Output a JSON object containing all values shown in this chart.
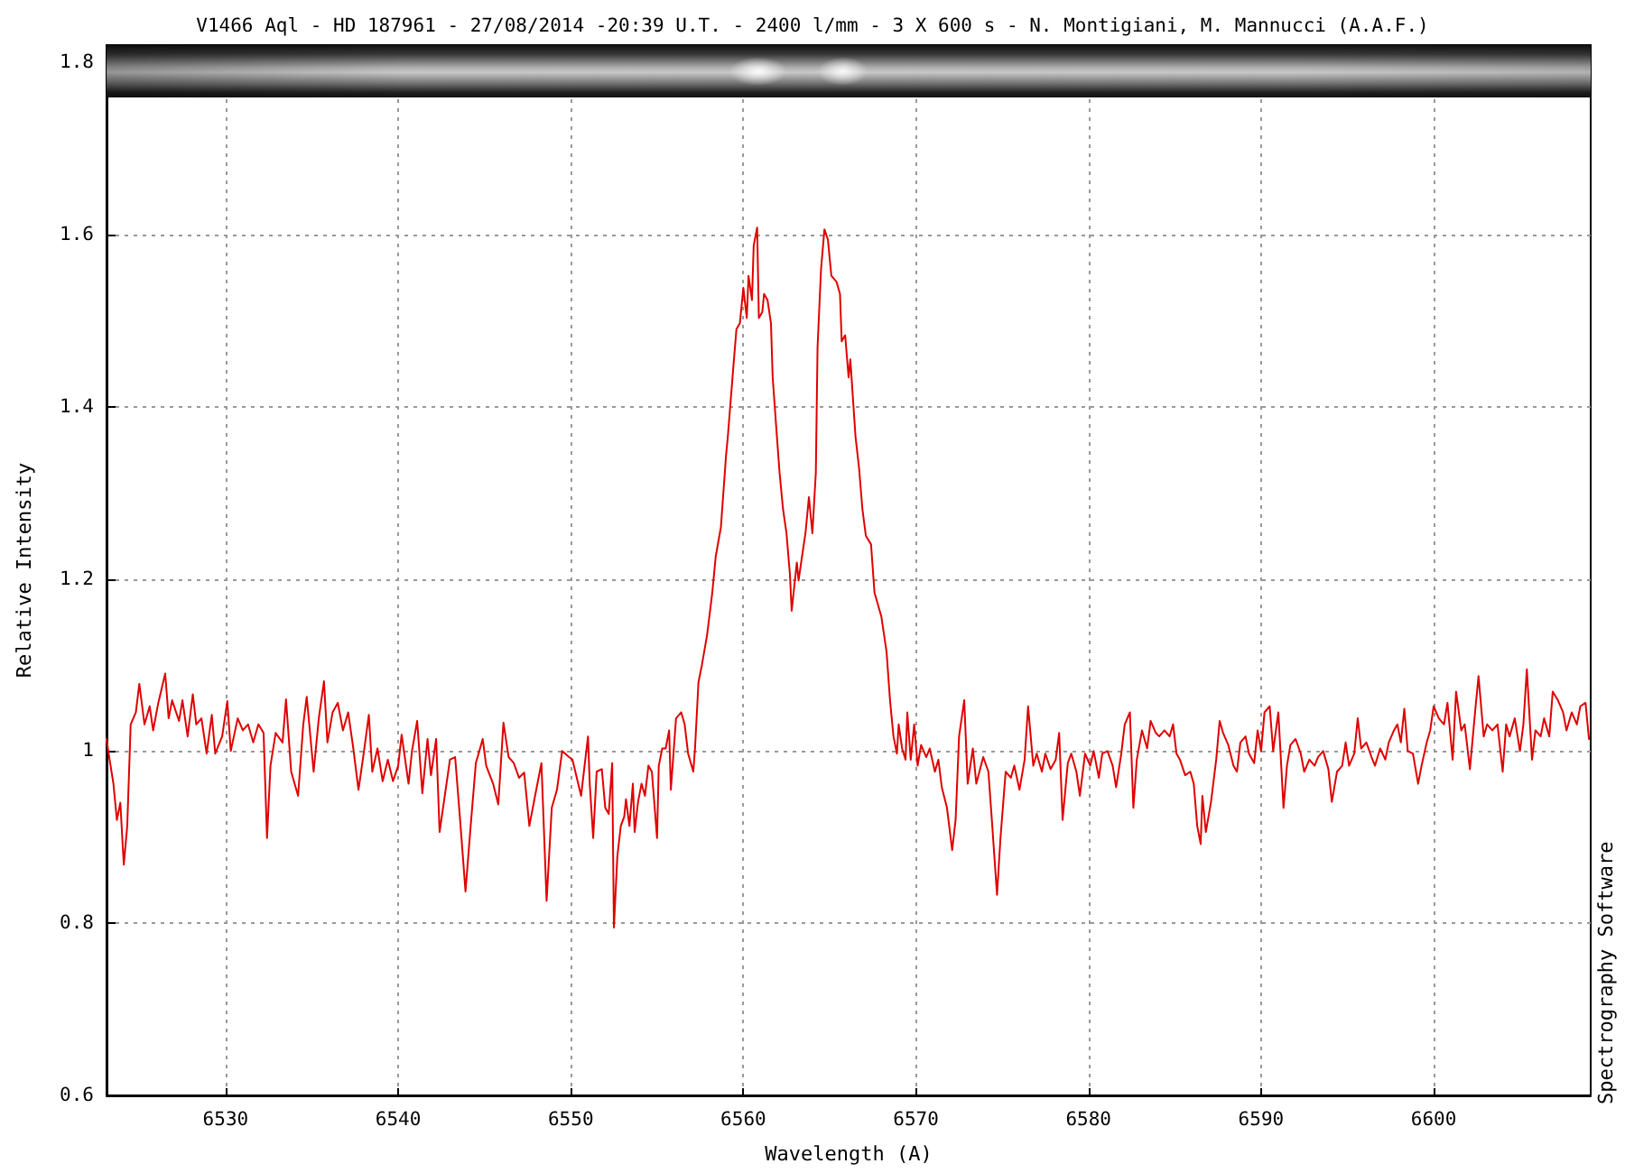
{
  "chart_data": {
    "type": "line",
    "title": "V1466 Aql - HD 187961 - 27/08/2014 -20:39 U.T. - 2400 l/mm - 3 X 600 s - N. Montigiani, M. Mannucci (A.A.F.)",
    "xlabel": "Wavelength (A)",
    "ylabel": "Relative Intensity",
    "annotations": [
      "Spectrography Software"
    ],
    "x": [
      6523.1,
      6523.2,
      6523.5,
      6523.7,
      6523.9,
      6524.1,
      6524.3,
      6524.5,
      6524.8,
      6525.0,
      6525.3,
      6525.6,
      6525.8,
      6526.1,
      6526.5,
      6526.7,
      6526.9,
      6527.3,
      6527.5,
      6527.8,
      6528.1,
      6528.3,
      6528.6,
      6528.9,
      6529.2,
      6529.4,
      6529.8,
      6530.1,
      6530.3,
      6530.7,
      6531.0,
      6531.3,
      6531.6,
      6531.9,
      6532.2,
      6532.4,
      6532.6,
      6532.9,
      6533.3,
      6533.5,
      6533.8,
      6534.2,
      6534.5,
      6534.7,
      6535.1,
      6535.4,
      6535.7,
      6535.9,
      6536.2,
      6536.5,
      6536.8,
      6537.1,
      6537.4,
      6537.7,
      6538.0,
      6538.3,
      6538.5,
      6538.8,
      6539.1,
      6539.4,
      6539.7,
      6540.0,
      6540.2,
      6540.6,
      6540.8,
      6541.1,
      6541.4,
      6541.7,
      6541.9,
      6542.2,
      6542.4,
      6542.7,
      6543.0,
      6543.3,
      6543.6,
      6543.9,
      6544.2,
      6544.5,
      6544.9,
      6545.1,
      6545.5,
      6545.8,
      6546.1,
      6546.4,
      6546.7,
      6547.0,
      6547.3,
      6547.6,
      6548.0,
      6548.3,
      6548.6,
      6548.9,
      6549.2,
      6549.5,
      6549.9,
      6550.1,
      6550.6,
      6550.8,
      6551.0,
      6551.1,
      6551.3,
      6551.5,
      6551.8,
      6552.0,
      6552.2,
      6552.4,
      6552.5,
      6552.7,
      6552.9,
      6553.1,
      6553.2,
      6553.4,
      6553.6,
      6553.7,
      6553.9,
      6554.1,
      6554.3,
      6554.5,
      6554.7,
      6555.0,
      6555.1,
      6555.3,
      6555.5,
      6555.7,
      6555.8,
      6556.1,
      6556.4,
      6556.6,
      6556.8,
      6557.1,
      6557.2,
      6557.4,
      6557.6,
      6557.9,
      6558.2,
      6558.4,
      6558.7,
      6559.0,
      6559.1,
      6559.4,
      6559.6,
      6559.8,
      6560.0,
      6560.2,
      6560.3,
      6560.5,
      6560.6,
      6560.8,
      6560.9,
      6561.1,
      6561.2,
      6561.4,
      6561.6,
      6561.7,
      6561.9,
      6562.1,
      6562.3,
      6562.5,
      6562.7,
      6562.8,
      6563.1,
      6563.2,
      6563.4,
      6563.6,
      6563.8,
      6564.0,
      6564.2,
      6564.3,
      6564.5,
      6564.7,
      6564.9,
      6565.1,
      6565.4,
      6565.6,
      6565.7,
      6565.9,
      6566.1,
      6566.2,
      6566.5,
      6566.7,
      6566.9,
      6567.1,
      6567.4,
      6567.6,
      6568.0,
      6568.3,
      6568.5,
      6568.7,
      6568.9,
      6569.0,
      6569.2,
      6569.4,
      6569.5,
      6569.7,
      6569.9,
      6570.1,
      6570.3,
      6570.6,
      6570.8,
      6571.1,
      6571.3,
      6571.5,
      6571.8,
      6572.1,
      6572.3,
      6572.5,
      6572.8,
      6573.0,
      6573.3,
      6573.5,
      6573.9,
      6574.2,
      6574.4,
      6574.7,
      6574.9,
      6575.2,
      6575.5,
      6575.7,
      6576.0,
      6576.3,
      6576.5,
      6576.8,
      6577.0,
      6577.3,
      6577.5,
      6577.8,
      6578.1,
      6578.3,
      6578.5,
      6578.8,
      6579.0,
      6579.3,
      6579.5,
      6579.8,
      6580.1,
      6580.3,
      6580.6,
      6580.8,
      6581.1,
      6581.4,
      6581.6,
      6581.9,
      6582.1,
      6582.4,
      6582.6,
      6582.8,
      6583.1,
      6583.4,
      6583.6,
      6583.9,
      6584.1,
      6584.4,
      6584.7,
      6584.9,
      6585.1,
      6585.3,
      6585.6,
      6585.9,
      6586.1,
      6586.3,
      6586.5,
      6586.6,
      6586.8,
      6587.1,
      6587.4,
      6587.6,
      6587.8,
      6588.1,
      6588.4,
      6588.6,
      6588.8,
      6589.1,
      6589.3,
      6589.6,
      6589.8,
      6590.0,
      6590.2,
      6590.5,
      6590.7,
      6591.0,
      6591.3,
      6591.5,
      6591.7,
      6592.0,
      6592.3,
      6592.5,
      6592.8,
      6593.1,
      6593.3,
      6593.6,
      6593.9,
      6594.1,
      6594.4,
      6594.7,
      6594.9,
      6595.1,
      6595.4,
      6595.6,
      6595.8,
      6596.1,
      6596.4,
      6596.6,
      6596.9,
      6597.2,
      6597.4,
      6597.7,
      6597.9,
      6598.1,
      6598.3,
      6598.5,
      6598.8,
      6599.1,
      6599.3,
      6599.6,
      6599.8,
      6600.0,
      6600.3,
      6600.6,
      6600.8,
      6601.1,
      6601.3,
      6601.6,
      6601.8,
      6602.1,
      6602.4,
      6602.6,
      6602.9,
      6603.1,
      6603.4,
      6603.7,
      6604.0,
      6604.2,
      6604.4,
      6604.7,
      6605.0,
      6605.2,
      6605.4,
      6605.7,
      6605.9,
      6606.2,
      6606.4,
      6606.7,
      6606.9,
      6607.2,
      6607.5,
      6607.7,
      6608.0,
      6608.3,
      6608.5,
      6608.8,
      6609.0
    ],
    "series": [
      {
        "color": "#e00000",
        "values": [
          1.014,
          1.0,
          0.962,
          0.92,
          0.94,
          0.868,
          0.913,
          1.031,
          1.045,
          1.078,
          1.031,
          1.052,
          1.024,
          1.056,
          1.09,
          1.038,
          1.059,
          1.035,
          1.059,
          1.017,
          1.066,
          1.031,
          1.038,
          0.997,
          1.042,
          0.997,
          1.017,
          1.058,
          1.0,
          1.038,
          1.024,
          1.031,
          1.01,
          1.031,
          1.021,
          0.899,
          0.983,
          1.021,
          1.01,
          1.06,
          0.976,
          0.948,
          1.031,
          1.063,
          0.976,
          1.038,
          1.081,
          1.01,
          1.045,
          1.056,
          1.024,
          1.045,
          1.003,
          0.955,
          0.997,
          1.042,
          0.976,
          1.003,
          0.965,
          0.99,
          0.965,
          0.983,
          1.019,
          0.962,
          1.0,
          1.035,
          0.951,
          1.014,
          0.972,
          1.014,
          0.906,
          0.948,
          0.99,
          0.993,
          0.917,
          0.837,
          0.913,
          0.986,
          1.014,
          0.983,
          0.962,
          0.938,
          1.033,
          0.993,
          0.986,
          0.969,
          0.975,
          0.913,
          0.955,
          0.986,
          0.826,
          0.934,
          0.955,
          1.0,
          0.993,
          0.99,
          0.948,
          0.983,
          1.017,
          0.962,
          0.899,
          0.976,
          0.979,
          0.934,
          0.927,
          0.986,
          0.795,
          0.878,
          0.913,
          0.924,
          0.944,
          0.913,
          0.962,
          0.906,
          0.941,
          0.962,
          0.948,
          0.983,
          0.976,
          0.899,
          0.983,
          1.003,
          1.003,
          1.024,
          0.955,
          1.038,
          1.045,
          1.031,
          0.997,
          0.976,
          1.003,
          1.08,
          1.1,
          1.135,
          1.184,
          1.226,
          1.26,
          1.344,
          1.365,
          1.441,
          1.49,
          1.497,
          1.538,
          1.503,
          1.552,
          1.524,
          1.587,
          1.608,
          1.503,
          1.51,
          1.531,
          1.524,
          1.497,
          1.434,
          1.378,
          1.323,
          1.281,
          1.253,
          1.205,
          1.163,
          1.219,
          1.198,
          1.226,
          1.253,
          1.295,
          1.253,
          1.323,
          1.469,
          1.559,
          1.606,
          1.594,
          1.552,
          1.545,
          1.531,
          1.476,
          1.483,
          1.434,
          1.455,
          1.365,
          1.33,
          1.281,
          1.25,
          1.24,
          1.184,
          1.156,
          1.115,
          1.059,
          1.017,
          0.997,
          1.031,
          1.003,
          0.99,
          1.045,
          0.99,
          1.031,
          0.983,
          1.007,
          0.993,
          1.003,
          0.976,
          0.99,
          0.958,
          0.934,
          0.885,
          0.92,
          1.017,
          1.059,
          0.962,
          1.003,
          0.962,
          0.993,
          0.976,
          0.92,
          0.833,
          0.899,
          0.976,
          0.969,
          0.983,
          0.955,
          0.99,
          1.052,
          0.983,
          0.997,
          0.976,
          0.997,
          0.979,
          0.99,
          1.021,
          0.92,
          0.986,
          0.997,
          0.976,
          0.948,
          0.997,
          0.983,
          1.0,
          0.969,
          0.997,
          1.0,
          0.983,
          0.958,
          0.997,
          1.031,
          1.045,
          0.934,
          0.99,
          1.024,
          1.003,
          1.035,
          1.021,
          1.017,
          1.024,
          1.017,
          1.031,
          0.997,
          0.99,
          0.972,
          0.976,
          0.962,
          0.913,
          0.892,
          0.948,
          0.906,
          0.941,
          0.99,
          1.035,
          1.021,
          1.007,
          0.983,
          0.976,
          1.01,
          1.017,
          0.997,
          0.986,
          1.024,
          1.0,
          1.045,
          1.052,
          1.0,
          1.045,
          0.934,
          0.983,
          1.007,
          1.014,
          0.997,
          0.976,
          0.99,
          0.983,
          0.993,
          1.0,
          0.979,
          0.941,
          0.976,
          0.983,
          1.01,
          0.983,
          0.997,
          1.038,
          1.003,
          1.01,
          0.993,
          0.983,
          1.003,
          0.99,
          1.01,
          1.024,
          1.031,
          1.01,
          1.049,
          1.0,
          0.997,
          0.962,
          0.983,
          1.01,
          1.024,
          1.052,
          1.038,
          1.031,
          1.056,
          0.99,
          1.069,
          1.024,
          1.031,
          0.979,
          1.045,
          1.087,
          1.017,
          1.031,
          1.024,
          1.031,
          0.976,
          1.031,
          1.017,
          1.038,
          1.0,
          1.031,
          1.095,
          0.99,
          1.024,
          1.017,
          1.038,
          1.017,
          1.069,
          1.059,
          1.045,
          1.024,
          1.045,
          1.031,
          1.052,
          1.056,
          1.014
        ]
      }
    ],
    "xlim": [
      6523.1,
      6609.1
    ],
    "xticks": [
      6530,
      6540,
      6550,
      6560,
      6570,
      6580,
      6590,
      6600
    ],
    "ylim": [
      0.6,
      1.82
    ],
    "yticks": [
      0.6,
      0.8,
      1,
      1.2,
      1.4,
      1.6,
      1.8
    ],
    "grid": true,
    "marker": "none",
    "line_style": "solid"
  }
}
